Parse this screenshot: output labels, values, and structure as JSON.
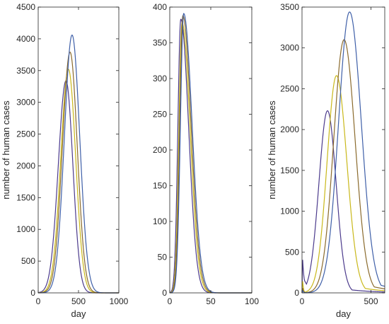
{
  "chart_data": [
    {
      "type": "line",
      "xlabel": "day",
      "ylabel": "number of human cases",
      "xlim": [
        0,
        1000
      ],
      "ylim": [
        0,
        4500
      ],
      "xticks": [
        0,
        500,
        1000
      ],
      "yticks": [
        0,
        500,
        1000,
        1500,
        2000,
        2500,
        3000,
        3500,
        4000,
        4500
      ],
      "grid": false,
      "series": [
        {
          "color": "#4B3A8C",
          "peak_x": 345,
          "peak_y": 3340,
          "width_left": 95,
          "width_right": 85
        },
        {
          "color": "#C9B81A",
          "peak_x": 375,
          "peak_y": 3520,
          "width_left": 95,
          "width_right": 90
        },
        {
          "color": "#8A6A2C",
          "peak_x": 395,
          "peak_y": 3790,
          "width_left": 95,
          "width_right": 90
        },
        {
          "color": "#3E5FA8",
          "peak_x": 420,
          "peak_y": 4060,
          "width_left": 95,
          "width_right": 95
        }
      ]
    },
    {
      "type": "line",
      "xlabel": "",
      "ylabel": "",
      "xlim": [
        0,
        100
      ],
      "ylim": [
        0,
        400
      ],
      "xticks": [
        0,
        50,
        100
      ],
      "yticks": [
        0,
        50,
        100,
        150,
        200,
        250,
        300,
        350,
        400
      ],
      "grid": false,
      "series": [
        {
          "color": "#4B3A8C",
          "peak_x": 13.5,
          "peak_y": 383,
          "width_left": 3.6,
          "width_right": 9.5
        },
        {
          "color": "#C9B81A",
          "peak_x": 15.0,
          "peak_y": 378,
          "width_left": 3.8,
          "width_right": 9.8
        },
        {
          "color": "#8A6A2C",
          "peak_x": 16.0,
          "peak_y": 388,
          "width_left": 3.9,
          "width_right": 10.0
        },
        {
          "color": "#3E5FA8",
          "peak_x": 17.0,
          "peak_y": 391,
          "width_left": 4.0,
          "width_right": 10.2
        }
      ]
    },
    {
      "type": "line",
      "xlabel": "day",
      "ylabel": "number of human cases",
      "xlim": [
        0,
        600
      ],
      "ylim": [
        0,
        3500
      ],
      "xticks": [
        0,
        500
      ],
      "yticks": [
        0,
        500,
        1000,
        1500,
        2000,
        2500,
        3000,
        3500
      ],
      "grid": false,
      "series": [
        {
          "color": "#4B3A8C",
          "peak_x": 185,
          "peak_y": 2230,
          "width_left": 62,
          "width_right": 62,
          "spike_x": 4,
          "spike_y": 430,
          "trough_x": 22,
          "trough_y": 140,
          "tail_y": 40
        },
        {
          "color": "#C9B81A",
          "peak_x": 250,
          "peak_y": 2660,
          "width_left": 68,
          "width_right": 75,
          "spike_x": 4,
          "spike_y": 150,
          "trough_x": 20,
          "trough_y": 10,
          "tail_y": 60
        },
        {
          "color": "#8A6A2C",
          "peak_x": 305,
          "peak_y": 3100,
          "width_left": 75,
          "width_right": 80,
          "spike_x": 4,
          "spike_y": 60,
          "trough_x": 20,
          "trough_y": 5,
          "tail_y": 80
        },
        {
          "color": "#3E5FA8",
          "peak_x": 345,
          "peak_y": 3440,
          "width_left": 80,
          "width_right": 85,
          "spike_x": 4,
          "spike_y": 30,
          "trough_x": 20,
          "trough_y": 3,
          "tail_y": 100
        }
      ]
    }
  ]
}
